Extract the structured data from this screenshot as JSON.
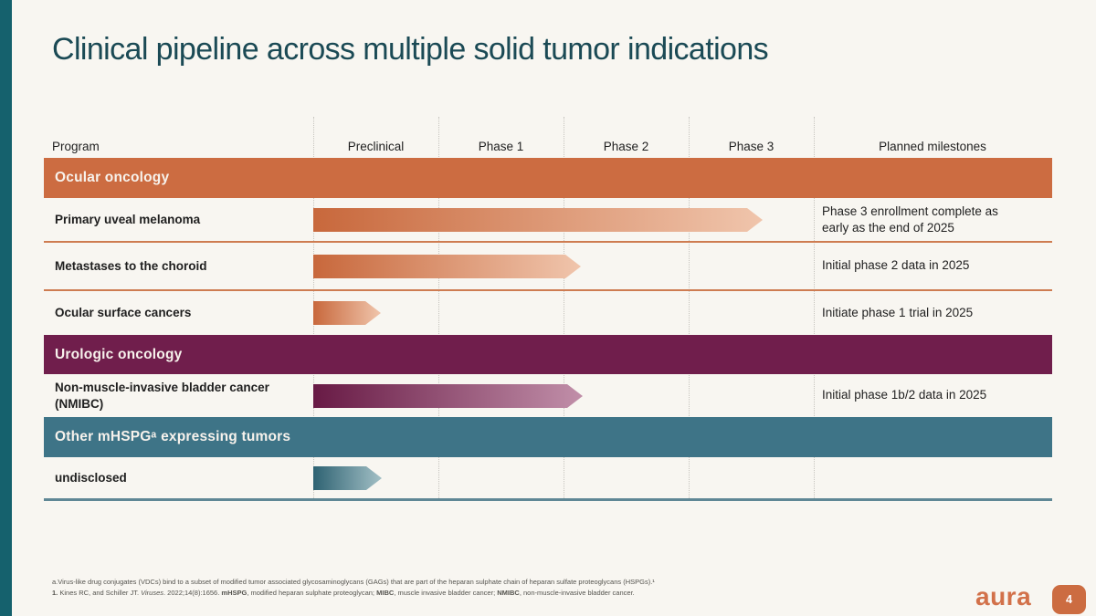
{
  "slide": {
    "title": "Clinical pipeline across multiple solid tumor indications",
    "page_number": "4",
    "logo_text": "aura"
  },
  "table": {
    "columns": [
      "Program",
      "Preclinical",
      "Phase 1",
      "Phase 2",
      "Phase 3",
      "Planned milestones"
    ],
    "sections": [
      {
        "label": "Ocular oncology",
        "band_color": "#CC6C41",
        "arrow_from": "#C8683C",
        "arrow_to": "#F0C5AC",
        "rule_color": "#CE7C51",
        "rows": [
          {
            "program": "Primary uveal melanoma",
            "progress": 3.59,
            "milestone": "Phase 3 enrollment complete as early as the end of 2025"
          },
          {
            "program": "Metastases to the choroid",
            "progress": 2.14,
            "milestone": "Initial phase 2 data in 2025"
          },
          {
            "program": "Ocular surface cancers",
            "progress": 0.54,
            "milestone": "Initiate phase 1 trial in 2025"
          }
        ]
      },
      {
        "label": "Urologic oncology",
        "band_color": "#701E4C",
        "arrow_from": "#681A45",
        "arrow_to": "#C18FA9",
        "rule_color": "#701E4C",
        "rows": [
          {
            "program": "Non-muscle-invasive bladder cancer (NMIBC)",
            "progress": 2.15,
            "milestone": "Initial phase 1b/2 data in 2025"
          }
        ]
      },
      {
        "label": "Other mHSPGᵃ expressing tumors",
        "band_color": "#3E7487",
        "arrow_from": "#2E6272",
        "arrow_to": "#A3C0C6",
        "rule_color": "#5F8795",
        "rows": [
          {
            "program": "undisclosed",
            "progress": 0.55,
            "milestone": ""
          }
        ]
      }
    ]
  },
  "footnotes": {
    "line1": "a.Virus-like drug conjugates (VDCs) bind to a subset of modified tumor associated glycosaminoglycans (GAGs) that are part of the heparan sulphate chain of heparan sulfate proteoglycans (HSPGs).¹",
    "line2_segments": [
      {
        "t": "1.",
        "b": true
      },
      {
        "t": " Kines RC, and Schiller JT. "
      },
      {
        "t": "Viruses",
        "i": true
      },
      {
        "t": ". 2022;14(8):1656. "
      },
      {
        "t": "mHSPG",
        "b": true
      },
      {
        "t": ", modified heparan sulphate proteoglycan; "
      },
      {
        "t": "MIBC",
        "b": true
      },
      {
        "t": ", muscle invasive bladder cancer; "
      },
      {
        "t": "NMIBC",
        "b": true
      },
      {
        "t": ", non-muscle-invasive bladder cancer."
      }
    ]
  },
  "colors": {
    "background": "#F8F6F1",
    "accent_bar": "#15616D",
    "title": "#1B4A55",
    "bottom_rule": "#5F8795",
    "logo": "#D2714A",
    "page_tab": "#CC6C41"
  }
}
